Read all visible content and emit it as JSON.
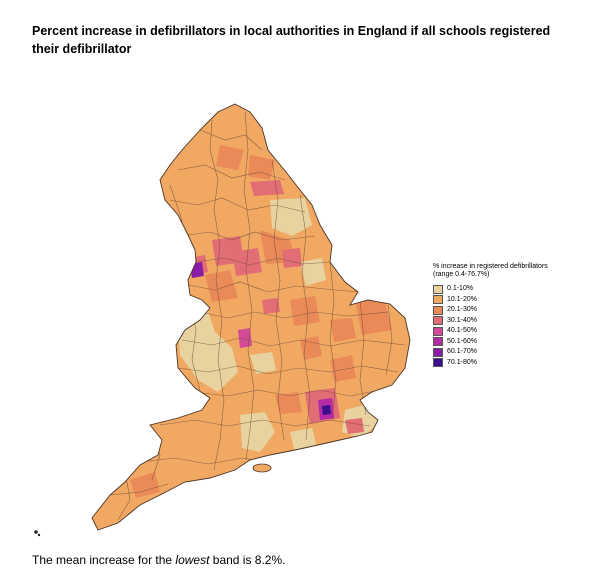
{
  "title": "Percent increase in defibrillators in local authorities in England if all schools registered their defibrillator",
  "legend": {
    "title_line1": "% increase in registered defibrillators",
    "title_line2": "(range 0.4-76.7%)",
    "items": [
      {
        "label": "0.1-10%",
        "color": "#e8d3a0"
      },
      {
        "label": "10.1-20%",
        "color": "#f0a862"
      },
      {
        "label": "20.1-30%",
        "color": "#ea8a58"
      },
      {
        "label": "30.1-40%",
        "color": "#e26d74"
      },
      {
        "label": "40.1-50%",
        "color": "#d34b97"
      },
      {
        "label": "50.1-60%",
        "color": "#b62aa8"
      },
      {
        "label": "60.1-70%",
        "color": "#8a1ca6"
      },
      {
        "label": "70.1-80%",
        "color": "#3d0f8f"
      }
    ]
  },
  "footnote": {
    "before": "The mean increase for the ",
    "emphasis": "lowest",
    "after": " band is 8.2%."
  }
}
